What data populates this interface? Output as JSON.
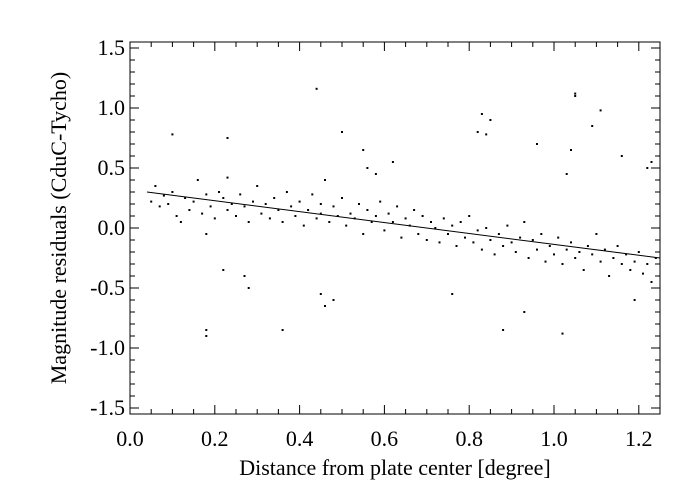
{
  "chart_data": {
    "type": "scatter",
    "title": "",
    "xlabel": "Distance from plate center [degree]",
    "ylabel": "Magnitude residuals (CduC-Tycho)",
    "xlim": [
      0.0,
      1.25
    ],
    "ylim": [
      -1.55,
      1.55
    ],
    "x_ticks": [
      0.0,
      0.2,
      0.4,
      0.6,
      0.8,
      1.0,
      1.2
    ],
    "x_tick_labels": [
      "0.0",
      "0.2",
      "0.4",
      "0.6",
      "0.8",
      "1.0",
      "1.2"
    ],
    "y_ticks": [
      -1.5,
      -1.0,
      -0.5,
      0.0,
      0.5,
      1.0,
      1.5
    ],
    "y_tick_labels": [
      "-1.5",
      "-1.0",
      "-0.5",
      "0.0",
      "0.5",
      "1.0",
      "1.5"
    ],
    "grid": false,
    "legend": "none",
    "fit_line": {
      "x": [
        0.04,
        1.25
      ],
      "y": [
        0.3,
        -0.25
      ]
    },
    "point_color": "#000000",
    "series": [
      {
        "x": [
          0.05,
          0.06,
          0.07,
          0.08,
          0.09,
          0.1,
          0.11,
          0.12,
          0.13,
          0.14,
          0.15,
          0.16,
          0.17,
          0.18,
          0.18,
          0.19,
          0.2,
          0.21,
          0.22,
          0.23,
          0.23,
          0.24,
          0.25,
          0.26,
          0.27,
          0.28,
          0.29,
          0.3,
          0.31,
          0.32,
          0.33,
          0.34,
          0.35,
          0.36,
          0.37,
          0.38,
          0.39,
          0.4,
          0.41,
          0.42,
          0.43,
          0.44,
          0.45,
          0.45,
          0.46,
          0.47,
          0.48,
          0.49,
          0.5,
          0.51,
          0.52,
          0.53,
          0.54,
          0.55,
          0.56,
          0.57,
          0.58,
          0.59,
          0.6,
          0.61,
          0.62,
          0.63,
          0.64,
          0.65,
          0.66,
          0.67,
          0.68,
          0.69,
          0.7,
          0.71,
          0.72,
          0.73,
          0.74,
          0.75,
          0.76,
          0.77,
          0.78,
          0.79,
          0.8,
          0.81,
          0.82,
          0.83,
          0.84,
          0.85,
          0.86,
          0.87,
          0.88,
          0.89,
          0.9,
          0.91,
          0.92,
          0.93,
          0.94,
          0.95,
          0.96,
          0.97,
          0.98,
          0.99,
          1.0,
          1.01,
          1.02,
          1.03,
          1.04,
          1.05,
          1.06,
          1.07,
          1.08,
          1.09,
          1.1,
          1.11,
          1.12,
          1.13,
          1.14,
          1.15,
          1.16,
          1.17,
          1.18,
          1.19,
          1.2,
          1.21,
          1.22,
          1.23,
          1.24,
          0.1,
          0.18,
          0.18,
          0.23,
          0.22,
          0.28,
          0.36,
          0.44,
          0.46,
          0.45,
          0.5,
          0.55,
          0.56,
          0.58,
          0.82,
          0.83,
          0.84,
          0.88,
          0.96,
          1.02,
          1.04,
          1.05,
          1.05,
          1.11,
          1.19,
          1.22,
          1.23,
          0.27,
          0.48,
          0.62,
          0.76,
          0.85,
          0.93,
          1.03,
          1.09,
          1.16
        ],
        "y": [
          0.22,
          0.35,
          0.18,
          0.27,
          0.2,
          0.3,
          0.1,
          0.05,
          0.25,
          0.15,
          0.22,
          0.4,
          0.12,
          -0.05,
          0.28,
          0.18,
          0.08,
          0.3,
          0.25,
          0.15,
          0.42,
          0.2,
          0.1,
          0.28,
          0.18,
          0.05,
          0.22,
          0.35,
          0.12,
          0.2,
          0.08,
          0.25,
          0.15,
          0.05,
          0.3,
          0.18,
          0.1,
          0.22,
          0.02,
          0.15,
          0.28,
          0.08,
          0.2,
          0.12,
          0.4,
          0.05,
          0.18,
          0.1,
          0.25,
          0.02,
          0.12,
          0.08,
          0.2,
          -0.05,
          0.15,
          0.05,
          0.1,
          0.22,
          -0.02,
          0.12,
          0.05,
          0.18,
          -0.08,
          0.08,
          0.02,
          0.15,
          -0.05,
          0.1,
          -0.1,
          0.05,
          0.0,
          -0.12,
          0.08,
          -0.05,
          0.02,
          -0.15,
          0.05,
          -0.08,
          0.1,
          -0.12,
          -0.02,
          -0.18,
          0.0,
          -0.1,
          -0.22,
          -0.05,
          -0.15,
          0.02,
          -0.12,
          -0.2,
          -0.08,
          0.05,
          -0.25,
          -0.1,
          -0.18,
          -0.05,
          -0.28,
          -0.15,
          -0.22,
          -0.08,
          -0.3,
          -0.18,
          -0.12,
          -0.25,
          -0.2,
          -0.35,
          -0.15,
          -0.22,
          -0.05,
          -0.28,
          -0.18,
          -0.4,
          -0.25,
          -0.15,
          -0.3,
          -0.22,
          -0.35,
          -0.28,
          -0.2,
          -0.38,
          -0.3,
          -0.45,
          -0.25,
          0.78,
          -0.85,
          -0.9,
          0.75,
          -0.35,
          -0.5,
          -0.85,
          1.16,
          -0.65,
          -0.55,
          0.8,
          0.65,
          0.5,
          0.45,
          0.8,
          0.95,
          0.78,
          -0.85,
          0.7,
          -0.88,
          0.65,
          1.12,
          1.1,
          0.98,
          -0.6,
          0.5,
          0.55,
          -0.4,
          -0.6,
          0.55,
          -0.55,
          0.9,
          -0.7,
          0.45,
          0.85,
          0.6
        ]
      }
    ]
  }
}
